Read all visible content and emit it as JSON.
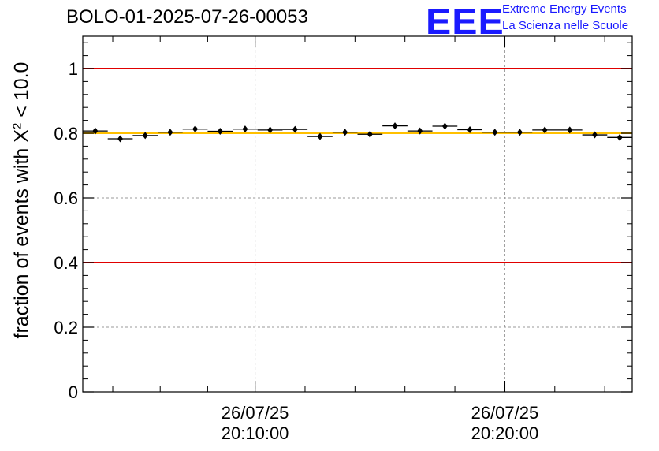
{
  "header": {
    "title": "BOLO-01-2025-07-26-00053"
  },
  "logo": {
    "mark": "EEE",
    "line1": "Extreme Energy Events",
    "line2": "La Scienza nelle Scuole"
  },
  "chart_data": {
    "type": "scatter",
    "title": "BOLO-01-2025-07-26-00053",
    "xlabel": "",
    "ylabel_prefix": "fraction of events with ",
    "ylabel_symbol": "X",
    "ylabel_sup": "2",
    "ylabel_suffix": " < 10.0",
    "xlim_minutes": [
      3.1,
      25.1
    ],
    "ylim": [
      0,
      1.1
    ],
    "y_ticks": [
      {
        "value": 0,
        "label": "0"
      },
      {
        "value": 0.2,
        "label": "0.2"
      },
      {
        "value": 0.4,
        "label": "0.4"
      },
      {
        "value": 0.6,
        "label": "0.6"
      },
      {
        "value": 0.8,
        "label": "0.8"
      },
      {
        "value": 1.0,
        "label": "1"
      }
    ],
    "x_ticks": [
      {
        "minute": 10,
        "date": "26/07/25",
        "time": "20:10:00"
      },
      {
        "minute": 20,
        "date": "26/07/25",
        "time": "20:20:00"
      }
    ],
    "x_minor_ticks_minutes": [
      4.3,
      6.2,
      8.1,
      12.0,
      14.0,
      16.0,
      18.0,
      22.0,
      24.0
    ],
    "grid": true,
    "reference_lines": [
      {
        "y": 1.0,
        "color": "#e00000"
      },
      {
        "y": 0.4,
        "color": "#e00000"
      },
      {
        "y": 0.8,
        "color": "#ffc000"
      }
    ],
    "series": [
      {
        "x_minutes": [
          3.6,
          4.6,
          5.6,
          6.6,
          7.6,
          8.6,
          9.6,
          10.6,
          11.6,
          12.6,
          13.6,
          14.6,
          15.6,
          16.6,
          17.6,
          18.6,
          19.6,
          20.6,
          21.6,
          22.6,
          23.6,
          24.6
        ],
        "values": [
          0.807,
          0.783,
          0.793,
          0.803,
          0.813,
          0.806,
          0.813,
          0.81,
          0.812,
          0.79,
          0.803,
          0.797,
          0.823,
          0.807,
          0.822,
          0.811,
          0.803,
          0.803,
          0.81,
          0.81,
          0.795,
          0.787
        ],
        "x_half_width_minutes": 0.5,
        "y_error": 0.007,
        "color": "#000000"
      }
    ]
  }
}
